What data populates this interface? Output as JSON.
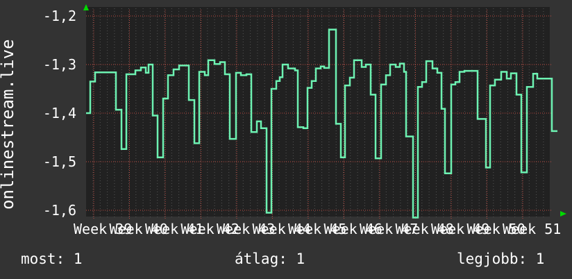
{
  "page": {
    "sidebar_title": "onlinestream.live"
  },
  "stats": {
    "most": "most: 1",
    "atlag": "átlag: 1",
    "legjobb": "legjobb: 1"
  },
  "colors": {
    "page_bg": "#333333",
    "plot_bg": "#212121",
    "grid_minor": "#565656",
    "grid_major": "#c14b41",
    "line": "#6df2b2",
    "axis_arrow": "#00d900",
    "text": "#ffffff"
  },
  "icons": {
    "up_arrow": "axis-arrow-up-icon",
    "right_arrow": "axis-arrow-right-icon"
  },
  "chart_data": {
    "type": "line",
    "line_style": "step",
    "title": "onlinestream.live",
    "xlabel": "",
    "ylabel": "",
    "legend_position": "none",
    "grid": true,
    "x_labels": [
      "Week 39",
      "Week 40",
      "Week 41",
      "Week 42",
      "Week 43",
      "Week 44",
      "Week 45",
      "Week 46",
      "Week 47",
      "Week 48",
      "Week 49",
      "Week 50",
      "Week 51"
    ],
    "y_ticks": [
      {
        "label": "-1,2",
        "value": -1.2
      },
      {
        "label": "-1,3",
        "value": -1.3
      },
      {
        "label": "-1,4",
        "value": -1.4
      },
      {
        "label": "-1,5",
        "value": -1.5
      },
      {
        "label": "-1,6",
        "value": -1.6
      }
    ],
    "ylim": [
      -1.63,
      -1.18
    ],
    "x_range_weeks": [
      39,
      51
    ],
    "series": [
      {
        "name": "onlinestream.live",
        "color": "#6df2b2",
        "points": [
          [
            124,
            -1.4
          ],
          [
            130,
            -1.335
          ],
          [
            137,
            -1.316
          ],
          [
            167,
            -1.393
          ],
          [
            175,
            -1.474
          ],
          [
            182,
            -1.32
          ],
          [
            195,
            -1.312
          ],
          [
            203,
            -1.306
          ],
          [
            210,
            -1.317
          ],
          [
            214,
            -1.3
          ],
          [
            220,
            -1.405
          ],
          [
            227,
            -1.491
          ],
          [
            235,
            -1.37
          ],
          [
            242,
            -1.322
          ],
          [
            250,
            -1.31
          ],
          [
            258,
            -1.302
          ],
          [
            272,
            -1.373
          ],
          [
            280,
            -1.462
          ],
          [
            287,
            -1.315
          ],
          [
            295,
            -1.322
          ],
          [
            300,
            -1.291
          ],
          [
            309,
            -1.299
          ],
          [
            317,
            -1.295
          ],
          [
            324,
            -1.32
          ],
          [
            331,
            -1.453
          ],
          [
            340,
            -1.317
          ],
          [
            347,
            -1.322
          ],
          [
            355,
            -1.32
          ],
          [
            362,
            -1.439
          ],
          [
            370,
            -1.417
          ],
          [
            376,
            -1.431
          ],
          [
            384,
            -1.605
          ],
          [
            391,
            -1.35
          ],
          [
            398,
            -1.334
          ],
          [
            403,
            -1.326
          ],
          [
            407,
            -1.3
          ],
          [
            415,
            -1.308
          ],
          [
            425,
            -1.312
          ],
          [
            429,
            -1.429
          ],
          [
            437,
            -1.431
          ],
          [
            443,
            -1.348
          ],
          [
            449,
            -1.334
          ],
          [
            455,
            -1.308
          ],
          [
            462,
            -1.304
          ],
          [
            467,
            -1.307
          ],
          [
            474,
            -1.228
          ],
          [
            484,
            -1.422
          ],
          [
            491,
            -1.491
          ],
          [
            497,
            -1.343
          ],
          [
            504,
            -1.327
          ],
          [
            510,
            -1.291
          ],
          [
            521,
            -1.305
          ],
          [
            527,
            -1.3
          ],
          [
            534,
            -1.362
          ],
          [
            541,
            -1.493
          ],
          [
            549,
            -1.341
          ],
          [
            556,
            -1.322
          ],
          [
            562,
            -1.3
          ],
          [
            570,
            -1.305
          ],
          [
            576,
            -1.298
          ],
          [
            582,
            -1.315
          ],
          [
            585,
            -1.448
          ],
          [
            595,
            -1.615
          ],
          [
            602,
            -1.346
          ],
          [
            608,
            -1.336
          ],
          [
            614,
            -1.293
          ],
          [
            623,
            -1.308
          ],
          [
            630,
            -1.317
          ],
          [
            636,
            -1.391
          ],
          [
            641,
            -1.524
          ],
          [
            650,
            -1.341
          ],
          [
            656,
            -1.336
          ],
          [
            662,
            -1.315
          ],
          [
            669,
            -1.313
          ],
          [
            688,
            -1.412
          ],
          [
            700,
            -1.512
          ],
          [
            706,
            -1.343
          ],
          [
            713,
            -1.331
          ],
          [
            722,
            -1.315
          ],
          [
            730,
            -1.329
          ],
          [
            736,
            -1.318
          ],
          [
            744,
            -1.362
          ],
          [
            751,
            -1.522
          ],
          [
            759,
            -1.346
          ],
          [
            768,
            -1.319
          ],
          [
            774,
            -1.329
          ],
          [
            795,
            -1.437
          ],
          [
            803,
            -1.437
          ]
        ]
      }
    ],
    "stats_row": [
      "most: 1",
      "átlag: 1",
      "legjobb: 1"
    ]
  }
}
